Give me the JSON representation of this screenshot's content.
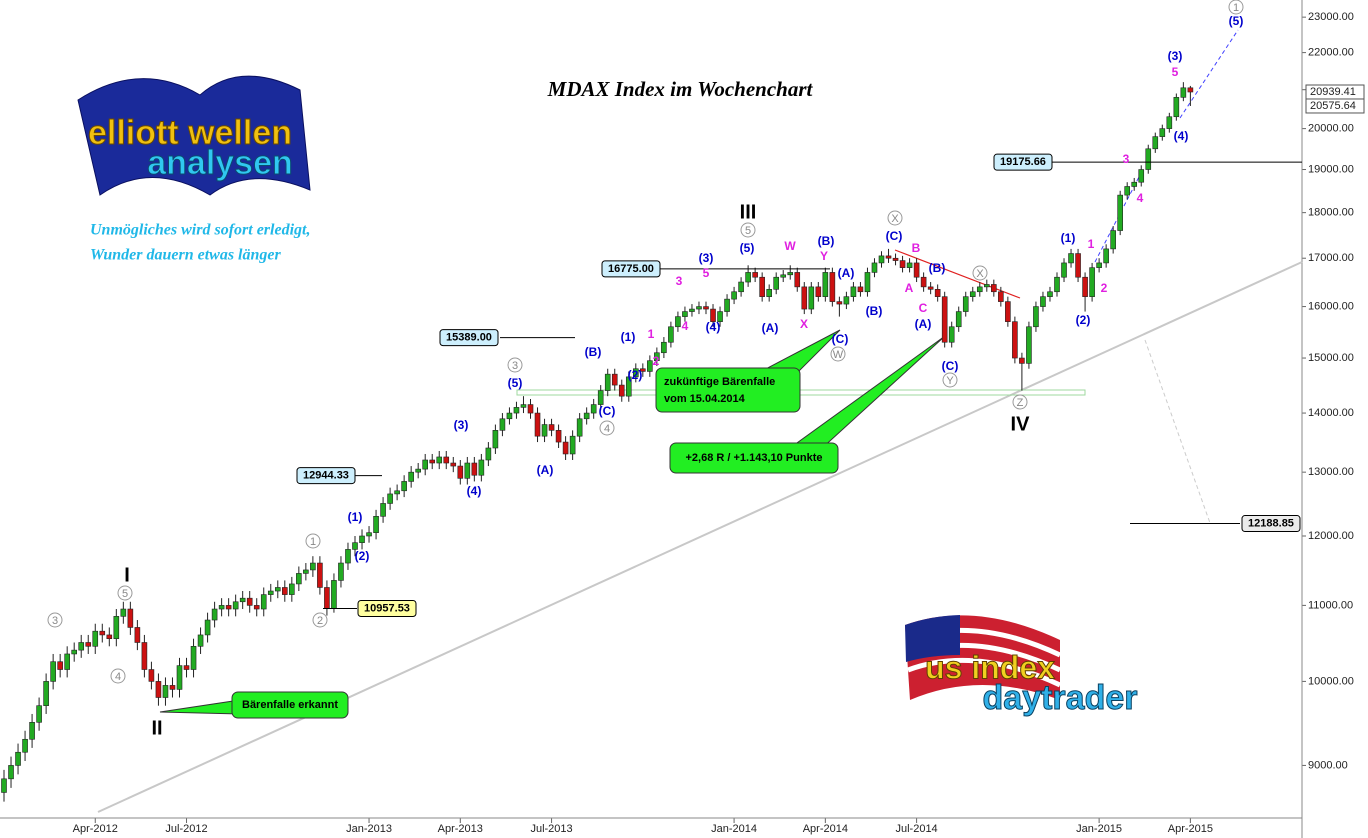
{
  "chart_data": {
    "type": "candlestick",
    "title": "MDAX Index im Wochenchart",
    "subtitle": [
      "Unmögliches wird sofort erledigt,",
      "Wunder dauern etwas länger"
    ],
    "logos": {
      "top": [
        "elliott wellen",
        "analysen"
      ],
      "bottom": [
        "us index",
        "daytrader"
      ]
    },
    "log_scale": true,
    "up_color": "#22aa22",
    "down_color": "#cc1111",
    "ylim": [
      8300,
      23500
    ],
    "yticks": [
      {
        "value": 9000,
        "label": "9000.00"
      },
      {
        "value": 10000,
        "label": "10000.00"
      },
      {
        "value": 11000,
        "label": "11000.00"
      },
      {
        "value": 12000,
        "label": "12000.00"
      },
      {
        "value": 13000,
        "label": "13000.00"
      },
      {
        "value": 14000,
        "label": "14000.00"
      },
      {
        "value": 15000,
        "label": "15000.00"
      },
      {
        "value": 16000,
        "label": "16000.00"
      },
      {
        "value": 17000,
        "label": "17000.00"
      },
      {
        "value": 18000,
        "label": "18000.00"
      },
      {
        "value": 19000,
        "label": "19000.00"
      },
      {
        "value": 20000,
        "label": "20000.00"
      },
      {
        "value": 21000,
        "label": "21000.00"
      },
      {
        "value": 22000,
        "label": "22000.00"
      },
      {
        "value": 23000,
        "label": "23000.00"
      }
    ],
    "categories": [
      null,
      null,
      null,
      null,
      null,
      null,
      null,
      null,
      null,
      null,
      null,
      null,
      null,
      "Apr-2012",
      null,
      null,
      null,
      null,
      null,
      null,
      null,
      null,
      null,
      null,
      null,
      null,
      "Jul-2012",
      null,
      null,
      null,
      null,
      null,
      null,
      null,
      null,
      null,
      null,
      null,
      null,
      null,
      null,
      null,
      null,
      null,
      null,
      null,
      null,
      null,
      null,
      null,
      null,
      null,
      "Jan-2013",
      null,
      null,
      null,
      null,
      null,
      null,
      null,
      null,
      null,
      null,
      null,
      null,
      "Apr-2013",
      null,
      null,
      null,
      null,
      null,
      null,
      null,
      null,
      null,
      null,
      null,
      null,
      "Jul-2013",
      null,
      null,
      null,
      null,
      null,
      null,
      null,
      null,
      null,
      null,
      null,
      null,
      null,
      null,
      null,
      null,
      null,
      null,
      null,
      null,
      null,
      null,
      null,
      null,
      null,
      "Jan-2014",
      null,
      null,
      null,
      null,
      null,
      null,
      null,
      null,
      null,
      null,
      null,
      null,
      "Apr-2014",
      null,
      null,
      null,
      null,
      null,
      null,
      null,
      null,
      null,
      null,
      null,
      null,
      "Jul-2014",
      null,
      null,
      null,
      null,
      null,
      null,
      null,
      null,
      null,
      null,
      null,
      null,
      null,
      null,
      null,
      null,
      null,
      null,
      null,
      null,
      null,
      null,
      null,
      null,
      null,
      "Jan-2015",
      null,
      null,
      null,
      null,
      null,
      null,
      null,
      null,
      null,
      null,
      null,
      null,
      "Apr-2015"
    ],
    "ohlc": [
      [
        8700,
        8950,
        8600,
        8850
      ],
      [
        8850,
        9100,
        8750,
        9000
      ],
      [
        9000,
        9250,
        8900,
        9150
      ],
      [
        9150,
        9400,
        9050,
        9300
      ],
      [
        9300,
        9600,
        9200,
        9500
      ],
      [
        9500,
        9800,
        9400,
        9700
      ],
      [
        9700,
        10100,
        9600,
        10000
      ],
      [
        10000,
        10350,
        9900,
        10250
      ],
      [
        10250,
        10350,
        10050,
        10150
      ],
      [
        10150,
        10450,
        10050,
        10350
      ],
      [
        10350,
        10500,
        10250,
        10400
      ],
      [
        10400,
        10600,
        10300,
        10500
      ],
      [
        10500,
        10600,
        10350,
        10450
      ],
      [
        10450,
        10750,
        10350,
        10650
      ],
      [
        10650,
        10750,
        10500,
        10600
      ],
      [
        10600,
        10700,
        10450,
        10550
      ],
      [
        10550,
        10950,
        10450,
        10850
      ],
      [
        10850,
        11050,
        10750,
        10950
      ],
      [
        10950,
        11050,
        10600,
        10700
      ],
      [
        10700,
        10800,
        10400,
        10500
      ],
      [
        10500,
        10600,
        10050,
        10150
      ],
      [
        10150,
        10250,
        9900,
        10000
      ],
      [
        10000,
        10100,
        9700,
        9800
      ],
      [
        9800,
        10050,
        9700,
        9950
      ],
      [
        9950,
        10050,
        9800,
        9900
      ],
      [
        9900,
        10300,
        9800,
        10200
      ],
      [
        10200,
        10300,
        10050,
        10150
      ],
      [
        10150,
        10550,
        10050,
        10450
      ],
      [
        10450,
        10700,
        10350,
        10600
      ],
      [
        10600,
        10900,
        10500,
        10800
      ],
      [
        10800,
        11050,
        10700,
        10950
      ],
      [
        10950,
        11100,
        10850,
        11000
      ],
      [
        11000,
        11100,
        10850,
        10950
      ],
      [
        10950,
        11150,
        10850,
        11050
      ],
      [
        11050,
        11200,
        10950,
        11100
      ],
      [
        11100,
        11200,
        10900,
        11000
      ],
      [
        11000,
        11100,
        10850,
        10950
      ],
      [
        10950,
        11250,
        10850,
        11150
      ],
      [
        11150,
        11300,
        11050,
        11200
      ],
      [
        11200,
        11350,
        11100,
        11250
      ],
      [
        11250,
        11350,
        11050,
        11150
      ],
      [
        11150,
        11400,
        11050,
        11300
      ],
      [
        11300,
        11550,
        11200,
        11450
      ],
      [
        11450,
        11600,
        11350,
        11500
      ],
      [
        11500,
        11700,
        11400,
        11600
      ],
      [
        11600,
        11700,
        11150,
        11250
      ],
      [
        11250,
        11350,
        10860,
        10960
      ],
      [
        10960,
        11450,
        10900,
        11350
      ],
      [
        11350,
        11700,
        11250,
        11600
      ],
      [
        11600,
        11900,
        11500,
        11800
      ],
      [
        11800,
        12000,
        11700,
        11900
      ],
      [
        11900,
        12100,
        11800,
        12000
      ],
      [
        12000,
        12150,
        11900,
        12050
      ],
      [
        12050,
        12400,
        11950,
        12300
      ],
      [
        12300,
        12600,
        12200,
        12500
      ],
      [
        12500,
        12750,
        12400,
        12650
      ],
      [
        12650,
        12800,
        12550,
        12700
      ],
      [
        12700,
        12950,
        12600,
        12850
      ],
      [
        12850,
        13100,
        12750,
        13000
      ],
      [
        13000,
        13150,
        12900,
        13050
      ],
      [
        13050,
        13300,
        12950,
        13200
      ],
      [
        13200,
        13300,
        13050,
        13150
      ],
      [
        13150,
        13350,
        13050,
        13250
      ],
      [
        13250,
        13350,
        13050,
        13150
      ],
      [
        13150,
        13250,
        13000,
        13100
      ],
      [
        13100,
        13200,
        12800,
        12900
      ],
      [
        12900,
        13250,
        12800,
        13150
      ],
      [
        13150,
        13250,
        12850,
        12950
      ],
      [
        12950,
        13300,
        12850,
        13200
      ],
      [
        13200,
        13500,
        13100,
        13400
      ],
      [
        13400,
        13800,
        13300,
        13700
      ],
      [
        13700,
        14000,
        13600,
        13900
      ],
      [
        13900,
        14100,
        13800,
        14000
      ],
      [
        14000,
        14200,
        13900,
        14100
      ],
      [
        14100,
        14300,
        14000,
        14150
      ],
      [
        14150,
        14250,
        13900,
        14000
      ],
      [
        14000,
        14100,
        13500,
        13600
      ],
      [
        13600,
        13900,
        13500,
        13800
      ],
      [
        13800,
        13900,
        13600,
        13700
      ],
      [
        13700,
        13800,
        13400,
        13500
      ],
      [
        13500,
        13600,
        13200,
        13300
      ],
      [
        13300,
        13700,
        13200,
        13600
      ],
      [
        13600,
        14000,
        13500,
        13900
      ],
      [
        13900,
        14100,
        13800,
        14000
      ],
      [
        14000,
        14250,
        13900,
        14150
      ],
      [
        14150,
        14500,
        14050,
        14400
      ],
      [
        14400,
        14800,
        14300,
        14700
      ],
      [
        14700,
        14800,
        14400,
        14500
      ],
      [
        14500,
        14600,
        14200,
        14300
      ],
      [
        14300,
        14750,
        14200,
        14650
      ],
      [
        14650,
        14900,
        14550,
        14800
      ],
      [
        14800,
        14900,
        14650,
        14750
      ],
      [
        14750,
        15050,
        14650,
        14950
      ],
      [
        14950,
        15200,
        14850,
        15100
      ],
      [
        15100,
        15400,
        15000,
        15300
      ],
      [
        15300,
        15700,
        15200,
        15600
      ],
      [
        15600,
        15900,
        15500,
        15800
      ],
      [
        15800,
        16000,
        15700,
        15900
      ],
      [
        15900,
        16050,
        15800,
        15950
      ],
      [
        15950,
        16100,
        15850,
        16000
      ],
      [
        16000,
        16100,
        15850,
        15950
      ],
      [
        15950,
        16050,
        15600,
        15700
      ],
      [
        15700,
        16000,
        15600,
        15900
      ],
      [
        15900,
        16250,
        15800,
        16150
      ],
      [
        16150,
        16400,
        16050,
        16300
      ],
      [
        16300,
        16600,
        16200,
        16500
      ],
      [
        16500,
        16850,
        16400,
        16700
      ],
      [
        16700,
        16800,
        16500,
        16600
      ],
      [
        16600,
        16700,
        16100,
        16200
      ],
      [
        16200,
        16450,
        16100,
        16350
      ],
      [
        16350,
        16700,
        16250,
        16600
      ],
      [
        16600,
        16750,
        16500,
        16650
      ],
      [
        16650,
        16850,
        16550,
        16700
      ],
      [
        16700,
        16800,
        16300,
        16400
      ],
      [
        16400,
        16500,
        15850,
        15950
      ],
      [
        15950,
        16500,
        15850,
        16400
      ],
      [
        16400,
        16500,
        16100,
        16200
      ],
      [
        16200,
        16800,
        16100,
        16700
      ],
      [
        16700,
        16800,
        16000,
        16100
      ],
      [
        16100,
        16200,
        15800,
        16050
      ],
      [
        16050,
        16300,
        15950,
        16200
      ],
      [
        16200,
        16500,
        16100,
        16400
      ],
      [
        16400,
        16500,
        16200,
        16300
      ],
      [
        16300,
        16800,
        16200,
        16700
      ],
      [
        16700,
        17000,
        16600,
        16900
      ],
      [
        16900,
        17150,
        16800,
        17050
      ],
      [
        17050,
        17200,
        16900,
        17000
      ],
      [
        17000,
        17100,
        16850,
        16950
      ],
      [
        16950,
        17050,
        16700,
        16800
      ],
      [
        16800,
        17000,
        16700,
        16900
      ],
      [
        16900,
        17000,
        16500,
        16600
      ],
      [
        16600,
        16700,
        16300,
        16400
      ],
      [
        16400,
        16500,
        16250,
        16350
      ],
      [
        16350,
        16450,
        16100,
        16200
      ],
      [
        16200,
        16300,
        15200,
        15300
      ],
      [
        15300,
        15700,
        15200,
        15600
      ],
      [
        15600,
        16000,
        15500,
        15900
      ],
      [
        15900,
        16300,
        15800,
        16200
      ],
      [
        16200,
        16400,
        16100,
        16300
      ],
      [
        16300,
        16500,
        16200,
        16400
      ],
      [
        16400,
        16550,
        16300,
        16450
      ],
      [
        16450,
        16550,
        16200,
        16300
      ],
      [
        16300,
        16400,
        16000,
        16100
      ],
      [
        16100,
        16200,
        15600,
        15700
      ],
      [
        15700,
        15800,
        14900,
        15000
      ],
      [
        15000,
        15100,
        14400,
        14900
      ],
      [
        14900,
        15700,
        14800,
        15600
      ],
      [
        15600,
        16100,
        15500,
        16000
      ],
      [
        16000,
        16300,
        15900,
        16200
      ],
      [
        16200,
        16400,
        16100,
        16300
      ],
      [
        16300,
        16700,
        16200,
        16600
      ],
      [
        16600,
        17000,
        16500,
        16900
      ],
      [
        16900,
        17200,
        16800,
        17100
      ],
      [
        17100,
        17200,
        16500,
        16600
      ],
      [
        16600,
        16700,
        15900,
        16200
      ],
      [
        16200,
        16900,
        16100,
        16800
      ],
      [
        16800,
        17000,
        16700,
        16900
      ],
      [
        16900,
        17300,
        16800,
        17200
      ],
      [
        17200,
        17700,
        17100,
        17600
      ],
      [
        17600,
        18500,
        17500,
        18400
      ],
      [
        18400,
        18700,
        18300,
        18600
      ],
      [
        18600,
        18800,
        18500,
        18700
      ],
      [
        18700,
        19100,
        18600,
        19000
      ],
      [
        19000,
        19600,
        18900,
        19500
      ],
      [
        19500,
        19900,
        19400,
        19800
      ],
      [
        19800,
        20100,
        19700,
        20000
      ],
      [
        20000,
        20400,
        19900,
        20300
      ],
      [
        20300,
        20900,
        20200,
        20800
      ],
      [
        20800,
        21200,
        20700,
        21050
      ],
      [
        21050,
        21100,
        20575.64,
        20939.41
      ]
    ],
    "levels": [
      {
        "value": 15389,
        "label": "15389.00"
      },
      {
        "value": 16775,
        "label": "16775.00"
      },
      {
        "value": 12944.33,
        "label": "12944.33"
      },
      {
        "value": 10957.53,
        "label": "10957.53"
      },
      {
        "value": 19175.66,
        "label": "19175.66"
      },
      {
        "value": 12188.85,
        "label": "12188.85"
      }
    ],
    "annotations": {
      "major": [
        "I",
        "II",
        "III",
        "IV"
      ],
      "circled": [
        "3",
        "5",
        "4",
        "1",
        "2",
        "3",
        "4",
        "5",
        "X",
        "W",
        "X",
        "Y",
        "Z",
        "1"
      ],
      "blue": [
        "(1)",
        "(2)",
        "(3)",
        "(4)",
        "(5)",
        "(A)",
        "(B)",
        "(C)",
        "(1)",
        "(2)",
        "(3)",
        "(4)",
        "(5)",
        "(A)",
        "(B)",
        "(A)",
        "(C)",
        "(B)",
        "(C)",
        "(B)",
        "(A)",
        "(C)",
        "(1)",
        "(2)",
        "(3)",
        "(4)",
        "(5)"
      ],
      "magenta": [
        "1",
        "2",
        "3",
        "4",
        "5",
        "W",
        "Y",
        "X",
        "B",
        "A",
        "C",
        "1",
        "2",
        "3",
        "4",
        "5"
      ]
    },
    "callouts": [
      [
        "Bärenfalle erkannt"
      ],
      [
        "zukünftige Bärenfalle",
        "vom 15.04.2014"
      ],
      [
        "+2,68 R / +1.143,10 Punkte"
      ]
    ]
  }
}
